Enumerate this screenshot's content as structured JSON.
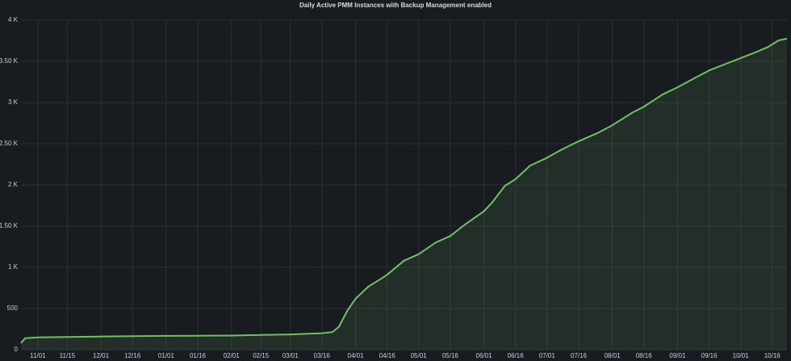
{
  "chart_data": {
    "type": "area",
    "title": "Daily Active PMM Instances with Backup Management enabled",
    "x": [
      -8,
      -6,
      0,
      14,
      30,
      45,
      61,
      76,
      92,
      106,
      120,
      135,
      140,
      143,
      147,
      151,
      157,
      163,
      166,
      174,
      181,
      189,
      196,
      203,
      212,
      216,
      222,
      227,
      234,
      242,
      249,
      257,
      266,
      273,
      282,
      288,
      297,
      304,
      312,
      319,
      328,
      334,
      341,
      347,
      352,
      356
    ],
    "values": [
      80,
      140,
      150,
      155,
      160,
      165,
      168,
      170,
      172,
      178,
      185,
      200,
      215,
      275,
      470,
      620,
      765,
      860,
      910,
      1080,
      1160,
      1300,
      1380,
      1520,
      1680,
      1790,
      1990,
      2070,
      2235,
      2330,
      2430,
      2530,
      2630,
      2725,
      2870,
      2950,
      3100,
      3185,
      3295,
      3390,
      3480,
      3540,
      3610,
      3675,
      3755,
      3775
    ],
    "color": "#73bf69",
    "xlim": [
      -8,
      356
    ],
    "xticks": [
      {
        "value": 0,
        "label": "11/01"
      },
      {
        "value": 14,
        "label": "11/15"
      },
      {
        "value": 30,
        "label": "12/01"
      },
      {
        "value": 45,
        "label": "12/16"
      },
      {
        "value": 61,
        "label": "01/01"
      },
      {
        "value": 76,
        "label": "01/16"
      },
      {
        "value": 92,
        "label": "02/01"
      },
      {
        "value": 106,
        "label": "02/15"
      },
      {
        "value": 120,
        "label": "03/01"
      },
      {
        "value": 135,
        "label": "03/16"
      },
      {
        "value": 151,
        "label": "04/01"
      },
      {
        "value": 166,
        "label": "04/16"
      },
      {
        "value": 181,
        "label": "05/01"
      },
      {
        "value": 196,
        "label": "05/16"
      },
      {
        "value": 212,
        "label": "06/01"
      },
      {
        "value": 227,
        "label": "06/16"
      },
      {
        "value": 242,
        "label": "07/01"
      },
      {
        "value": 257,
        "label": "07/16"
      },
      {
        "value": 273,
        "label": "08/01"
      },
      {
        "value": 288,
        "label": "08/16"
      },
      {
        "value": 304,
        "label": "09/01"
      },
      {
        "value": 319,
        "label": "09/16"
      },
      {
        "value": 334,
        "label": "10/01"
      },
      {
        "value": 349,
        "label": "10/16"
      }
    ],
    "ylim": [
      0,
      4000
    ],
    "yticks": [
      0,
      500,
      {
        "value": 1000,
        "label": "1 K"
      },
      {
        "value": 1500,
        "label": "1.50 K"
      },
      {
        "value": 2000,
        "label": "2 K"
      },
      {
        "value": 2500,
        "label": "2.50 K"
      },
      {
        "value": 3000,
        "label": "3 K"
      },
      {
        "value": 3500,
        "label": "3.50 K"
      },
      {
        "value": 4000,
        "label": "4 K"
      }
    ],
    "grid": true
  }
}
